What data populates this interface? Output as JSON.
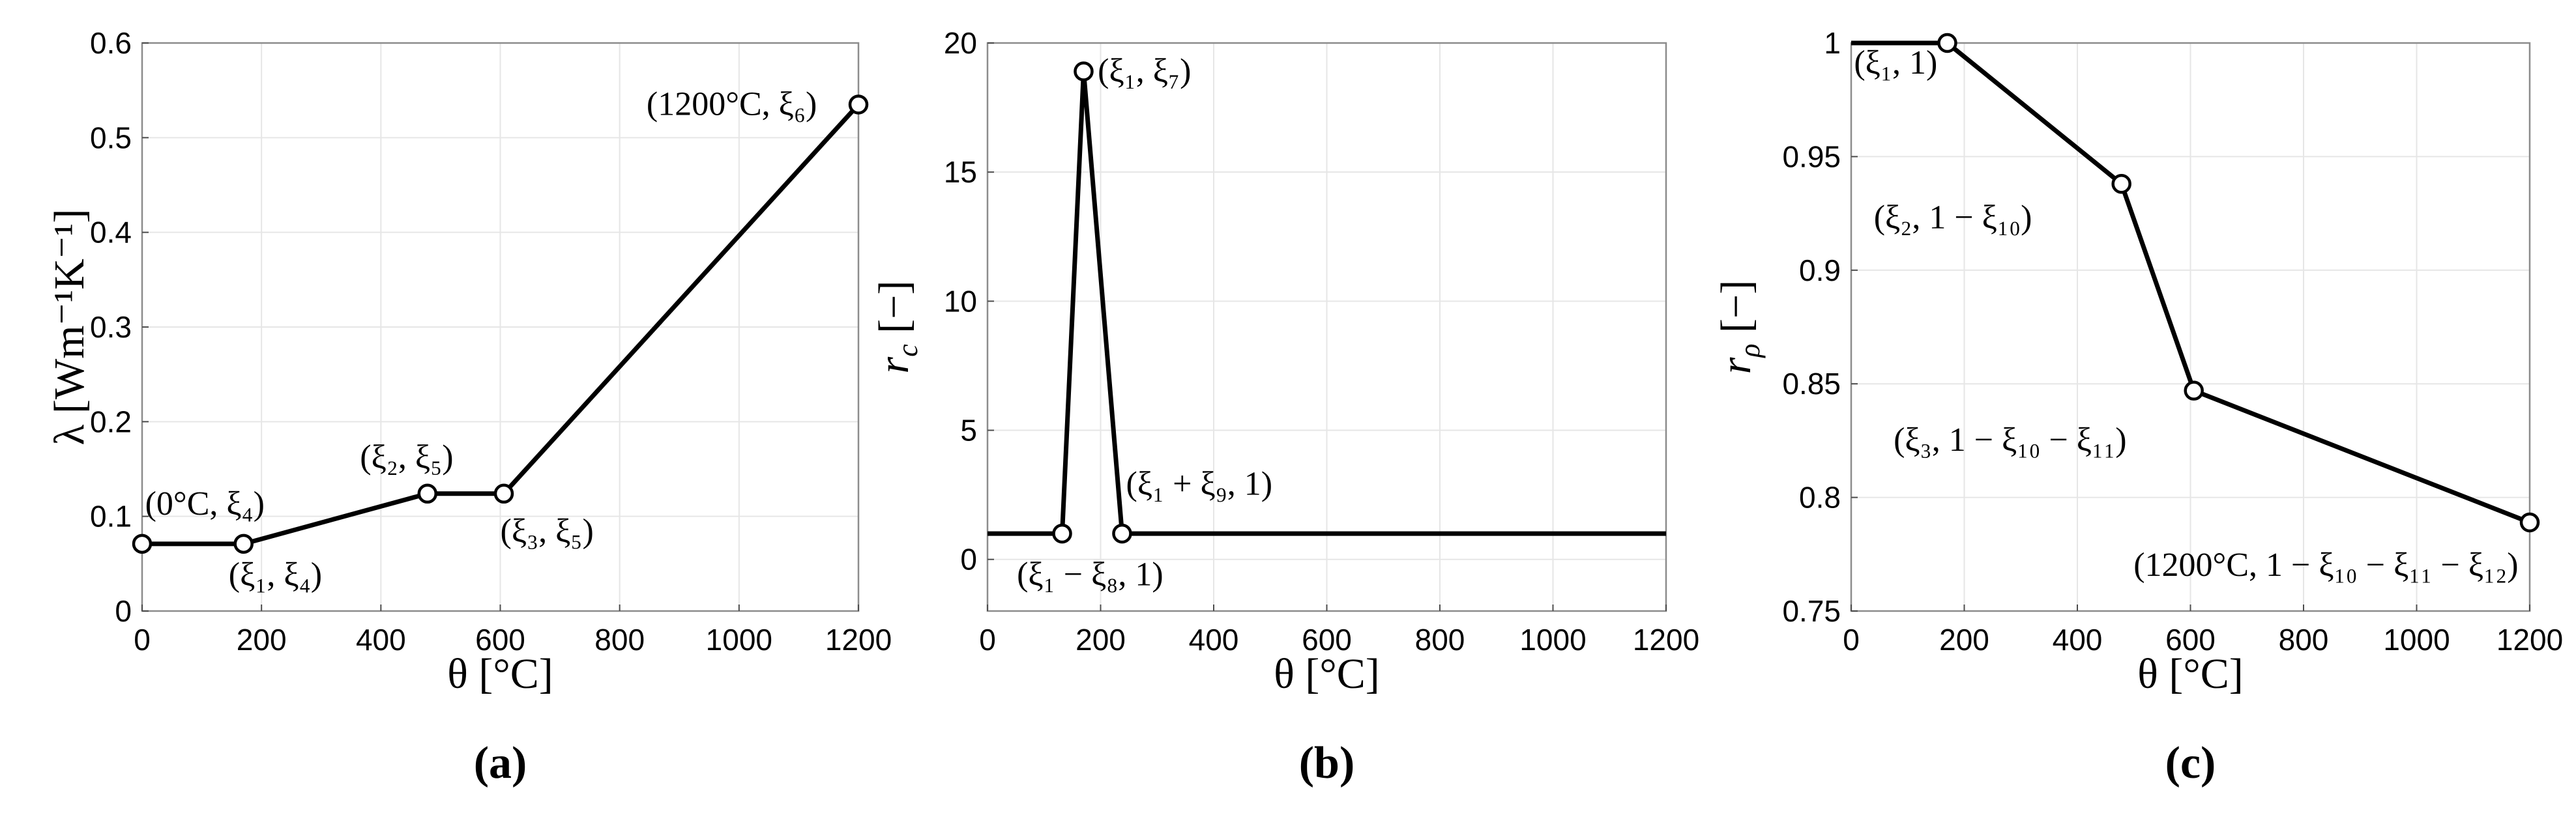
{
  "chart_data": [
    {
      "type": "line",
      "panel_label": "(a)",
      "xlabel": "θ [°C]",
      "ylabel": "λ [Wm⁻¹K⁻¹]",
      "xlim": [
        0,
        1200
      ],
      "ylim": [
        0,
        0.6
      ],
      "xticks": [
        0,
        200,
        400,
        600,
        800,
        1000,
        1200
      ],
      "yticks": [
        0,
        0.1,
        0.2,
        0.3,
        0.4,
        0.5,
        0.6
      ],
      "xtick_labels": [
        "0",
        "200",
        "400",
        "600",
        "800",
        "1000",
        "1200"
      ],
      "ytick_labels": [
        "0",
        "0.1",
        "0.2",
        "0.3",
        "0.4",
        "0.5",
        "0.6"
      ],
      "grid": true,
      "x": [
        0,
        170,
        478,
        606,
        1200
      ],
      "y": [
        0.071,
        0.071,
        0.124,
        0.124,
        0.535
      ],
      "markers": [
        {
          "x": 0,
          "y": 0.071
        },
        {
          "x": 170,
          "y": 0.071
        },
        {
          "x": 478,
          "y": 0.124
        },
        {
          "x": 606,
          "y": 0.124
        },
        {
          "x": 1200,
          "y": 0.535
        }
      ],
      "annotations": [
        {
          "text": "(0°C, ξ₄)",
          "x": 5,
          "y": 0.102
        },
        {
          "text": "(ξ₁, ξ₄)",
          "x": 145,
          "y": 0.027
        },
        {
          "text": "(ξ₂, ξ₅)",
          "x": 365,
          "y": 0.151
        },
        {
          "text": "(ξ₃, ξ₅)",
          "x": 600,
          "y": 0.073
        },
        {
          "text": "(1200°C, ξ₆)",
          "x": 845,
          "y": 0.524
        }
      ]
    },
    {
      "type": "line",
      "panel_label": "(b)",
      "xlabel": "θ [°C]",
      "ylabel": "r_c [−]",
      "ylabel_main": "r",
      "ylabel_sub": "c",
      "ylabel_unit": " [−]",
      "xlim": [
        0,
        1200
      ],
      "ylim": [
        -2,
        20
      ],
      "xticks": [
        0,
        200,
        400,
        600,
        800,
        1000,
        1200
      ],
      "yticks": [
        0,
        5,
        10,
        15,
        20
      ],
      "xtick_labels": [
        "0",
        "200",
        "400",
        "600",
        "800",
        "1000",
        "1200"
      ],
      "ytick_labels": [
        "0",
        "5",
        "10",
        "15",
        "20"
      ],
      "grid": true,
      "x": [
        0,
        132,
        170,
        238,
        1200
      ],
      "y": [
        1,
        1,
        18.9,
        1,
        1
      ],
      "markers": [
        {
          "x": 132,
          "y": 1
        },
        {
          "x": 170,
          "y": 18.9
        },
        {
          "x": 238,
          "y": 1
        }
      ],
      "annotations": [
        {
          "text": "(ξ₁, ξ₇)",
          "x": 195,
          "y": 18.5
        },
        {
          "text": "(ξ₁ + ξ₉, 1)",
          "x": 245,
          "y": 2.5
        },
        {
          "text": "(ξ₁ − ξ₈, 1)",
          "x": 52,
          "y": -1.0
        }
      ]
    },
    {
      "type": "line",
      "panel_label": "(c)",
      "xlabel": "θ [°C]",
      "ylabel": "r_ρ [−]",
      "ylabel_main": "r",
      "ylabel_sub": "ρ",
      "ylabel_unit": " [−]",
      "xlim": [
        0,
        1200
      ],
      "ylim": [
        0.75,
        1
      ],
      "xticks": [
        0,
        200,
        400,
        600,
        800,
        1000,
        1200
      ],
      "yticks": [
        0.75,
        0.8,
        0.85,
        0.9,
        0.95,
        1
      ],
      "xtick_labels": [
        "0",
        "200",
        "400",
        "600",
        "800",
        "1000",
        "1200"
      ],
      "ytick_labels": [
        "0.75",
        "0.8",
        "0.85",
        "0.9",
        "0.95",
        "1"
      ],
      "grid": true,
      "x": [
        0,
        170,
        478,
        606,
        1200
      ],
      "y": [
        1,
        1,
        0.938,
        0.847,
        0.789
      ],
      "markers": [
        {
          "x": 170,
          "y": 1
        },
        {
          "x": 478,
          "y": 0.938
        },
        {
          "x": 606,
          "y": 0.847
        },
        {
          "x": 1200,
          "y": 0.789
        }
      ],
      "annotations": [
        {
          "text": "(ξ₁, 1)",
          "x": 5,
          "y": 0.9865
        },
        {
          "text": "(ξ₂, 1 − ξ₁₀)",
          "x": 40,
          "y": 0.9185
        },
        {
          "text": "(ξ₃, 1 − ξ₁₀ − ξ₁₁)",
          "x": 75,
          "y": 0.8205
        },
        {
          "text": "(1200°C, 1 − ξ₁₀ − ξ₁₁ − ξ₁₂)",
          "x": 1180,
          "y": 0.7655,
          "anchor": "end"
        }
      ]
    }
  ]
}
